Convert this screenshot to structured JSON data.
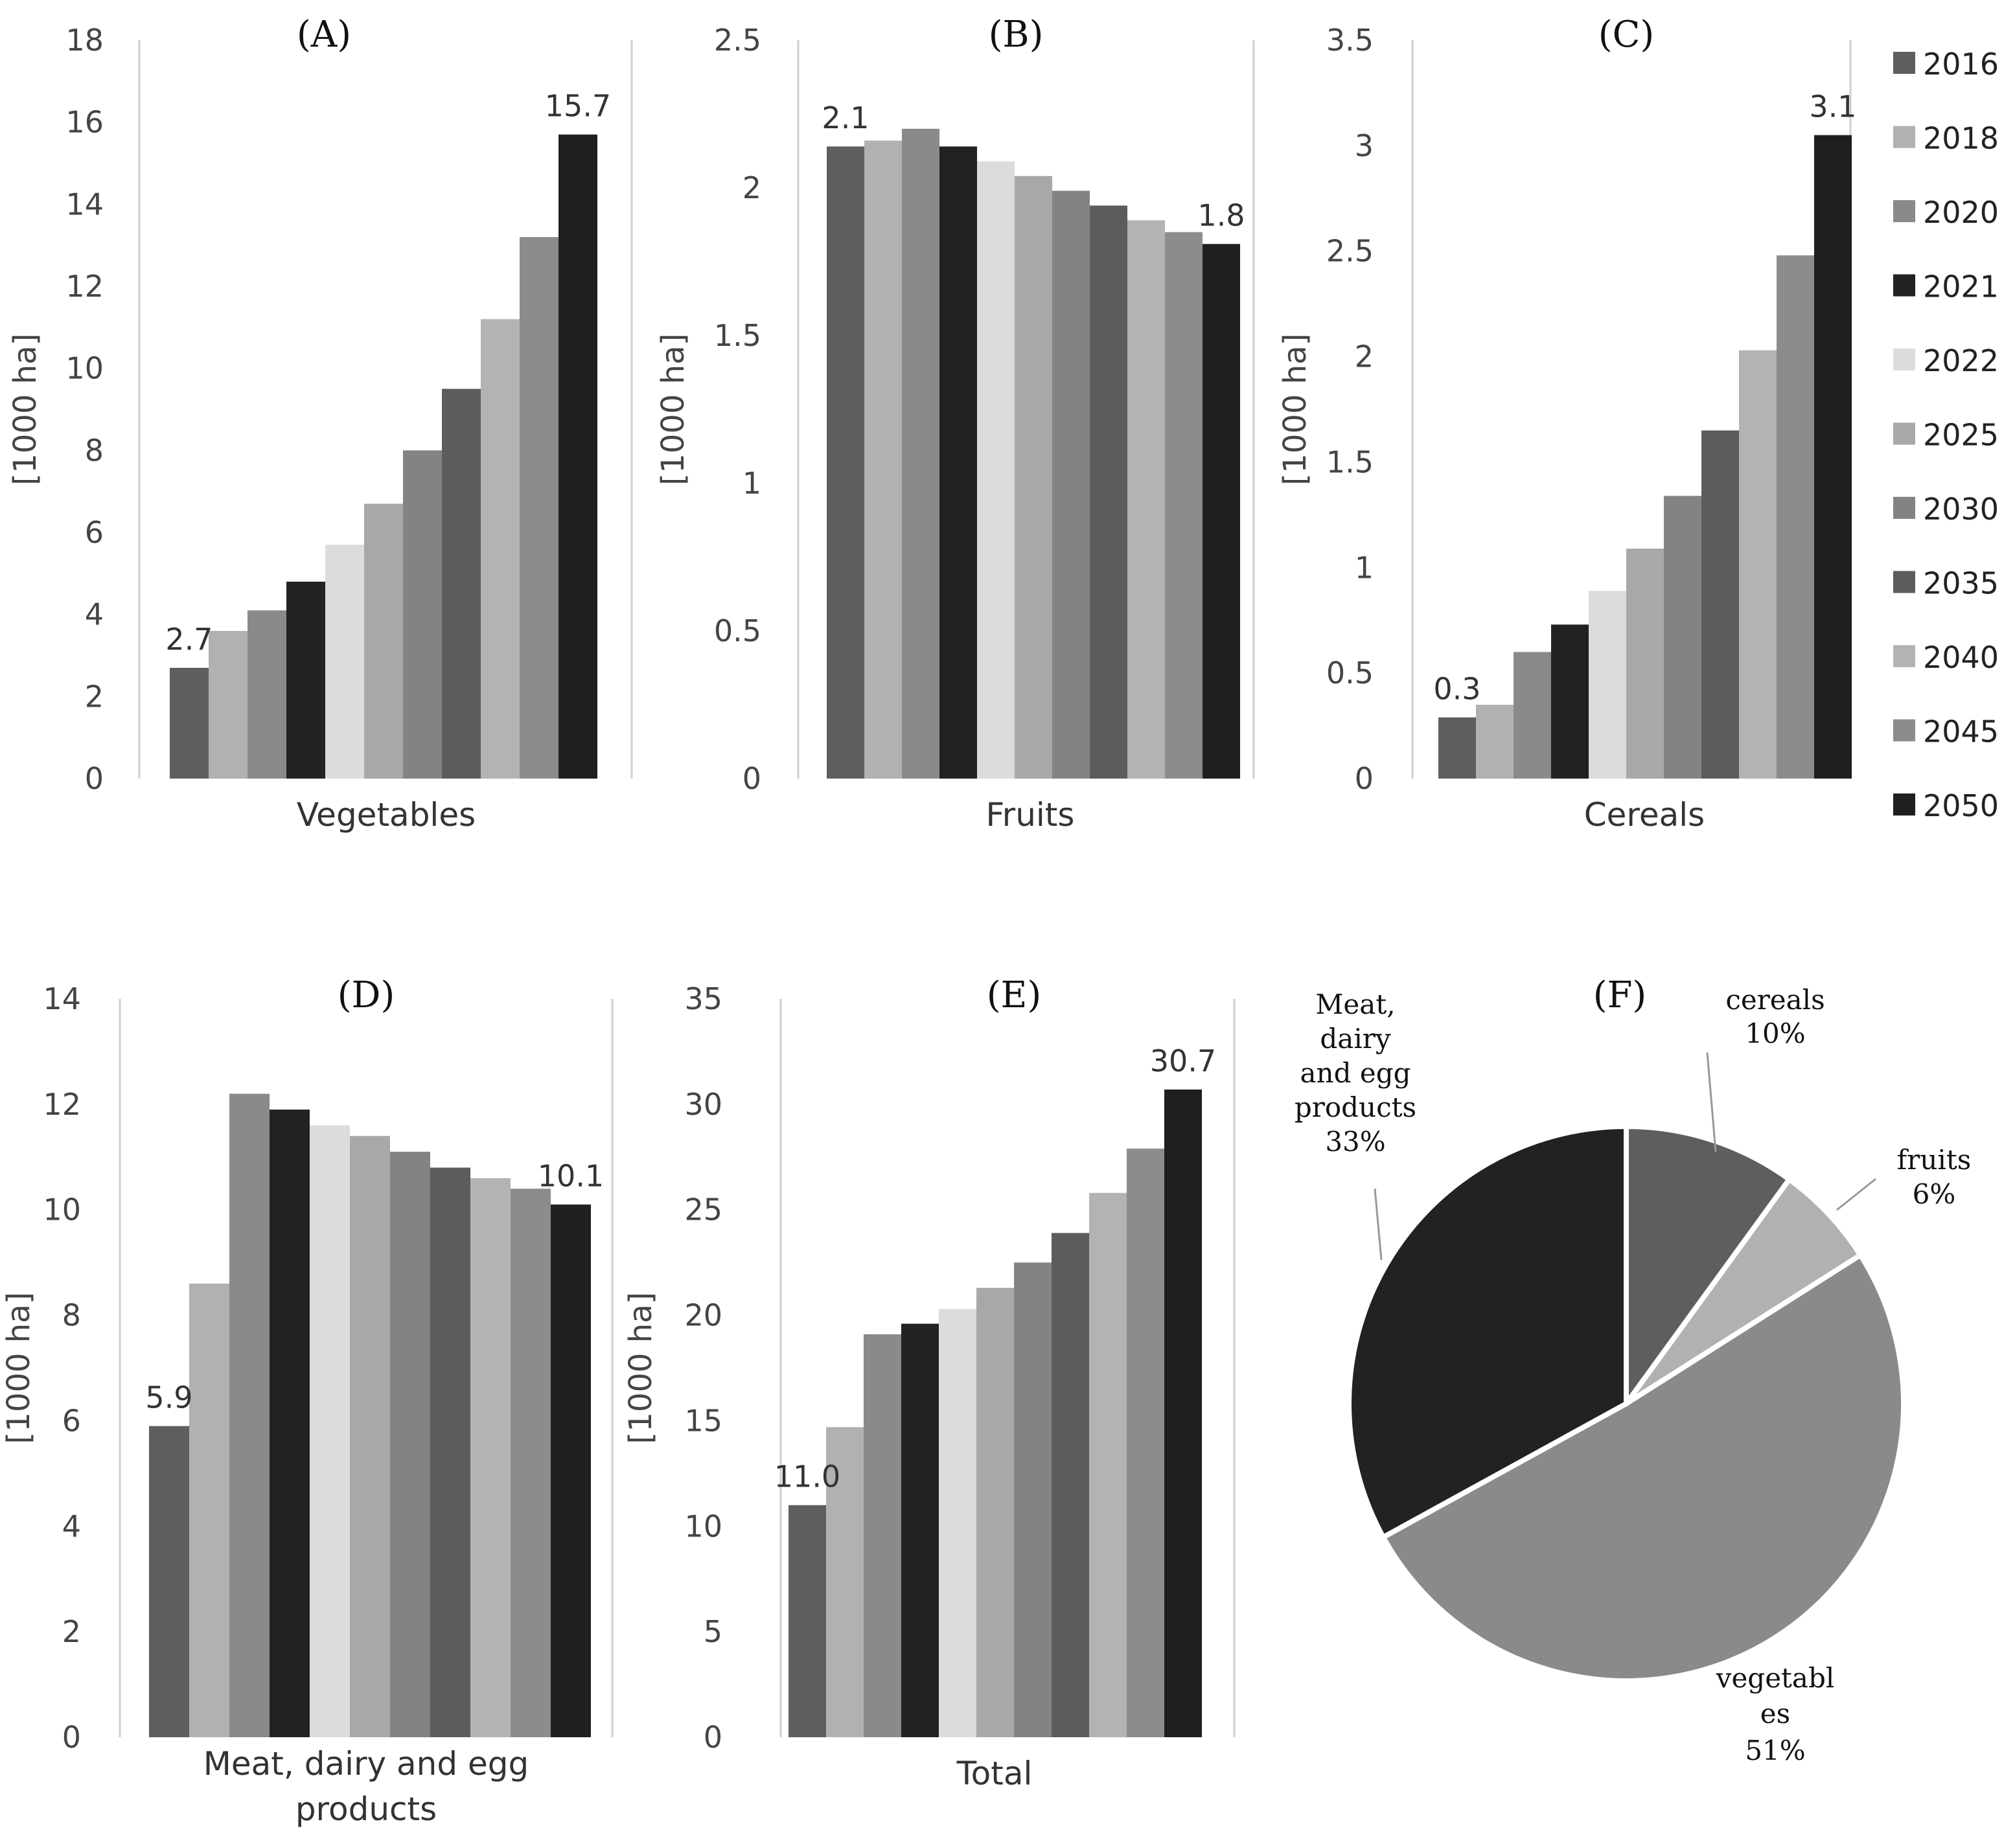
{
  "legend": {
    "years": [
      "2016",
      "2018",
      "2020",
      "2021",
      "2022",
      "2025",
      "2030",
      "2035",
      "2040",
      "2045",
      "2050"
    ],
    "colors": [
      "#5e5e5e",
      "#b1b1b1",
      "#8a8a8a",
      "#222222",
      "#dcdcdc",
      "#a8a8a8",
      "#838383",
      "#5c5c5c",
      "#b3b3b3",
      "#8c8c8c",
      "#1f1f1f"
    ]
  },
  "chart_data": [
    {
      "id": "A",
      "type": "bar",
      "title": "(A)",
      "xlabel": "Vegetables",
      "ylabel": "[1000 ha]",
      "ylim": [
        0,
        18
      ],
      "yticks": [
        0,
        2,
        4,
        6,
        8,
        10,
        12,
        14,
        16,
        18
      ],
      "ytick_labels": [
        "0",
        "2",
        "4",
        "6",
        "8",
        "10",
        "12",
        "14",
        "16",
        "18"
      ],
      "categories": [
        "2016",
        "2018",
        "2020",
        "2021",
        "2022",
        "2025",
        "2030",
        "2035",
        "2040",
        "2045",
        "2050"
      ],
      "values": [
        2.7,
        3.6,
        4.1,
        4.8,
        5.7,
        6.7,
        8.0,
        9.5,
        11.2,
        13.2,
        15.7
      ],
      "data_labels": [
        {
          "index": 0,
          "text": "2.7"
        },
        {
          "index": 10,
          "text": "15.7"
        }
      ]
    },
    {
      "id": "B",
      "type": "bar",
      "title": "(B)",
      "xlabel": "Fruits",
      "ylabel": "[1000 ha]",
      "ylim": [
        0,
        2.5
      ],
      "yticks": [
        0,
        0.5,
        1,
        1.5,
        2,
        2.5
      ],
      "ytick_labels": [
        "0",
        "0.5",
        "1",
        "1.5",
        "2",
        "2.5"
      ],
      "categories": [
        "2016",
        "2018",
        "2020",
        "2021",
        "2022",
        "2025",
        "2030",
        "2035",
        "2040",
        "2045",
        "2050"
      ],
      "values": [
        2.14,
        2.16,
        2.2,
        2.14,
        2.09,
        2.04,
        1.99,
        1.94,
        1.89,
        1.85,
        1.81
      ],
      "data_labels": [
        {
          "index": 0,
          "text": "2.1"
        },
        {
          "index": 10,
          "text": "1.8"
        }
      ]
    },
    {
      "id": "C",
      "type": "bar",
      "title": "(C)",
      "xlabel": "Cereals",
      "ylabel": "[1000 ha]",
      "ylim": [
        0,
        3.5
      ],
      "yticks": [
        0,
        0.5,
        1,
        1.5,
        2,
        2.5,
        3,
        3.5
      ],
      "ytick_labels": [
        "0",
        "0.5",
        "1",
        "1.5",
        "2",
        "2.5",
        "3",
        "3.5"
      ],
      "categories": [
        "2016",
        "2018",
        "2020",
        "2021",
        "2022",
        "2025",
        "2030",
        "2035",
        "2040",
        "2045",
        "2050"
      ],
      "values": [
        0.29,
        0.35,
        0.6,
        0.73,
        0.89,
        1.09,
        1.34,
        1.65,
        2.03,
        2.48,
        3.05
      ],
      "data_labels": [
        {
          "index": 0,
          "text": "0.3"
        },
        {
          "index": 10,
          "text": "3.1"
        }
      ]
    },
    {
      "id": "D",
      "type": "bar",
      "title": "(D)",
      "xlabel": "Meat, dairy and egg products",
      "ylabel": "[1000 ha]",
      "ylim": [
        0,
        14
      ],
      "yticks": [
        0,
        2,
        4,
        6,
        8,
        10,
        12,
        14
      ],
      "ytick_labels": [
        "0",
        "2",
        "4",
        "6",
        "8",
        "10",
        "12",
        "14"
      ],
      "categories": [
        "2016",
        "2018",
        "2020",
        "2021",
        "2022",
        "2025",
        "2030",
        "2035",
        "2040",
        "2045",
        "2050"
      ],
      "values": [
        5.9,
        8.6,
        12.2,
        11.9,
        11.6,
        11.4,
        11.1,
        10.8,
        10.6,
        10.4,
        10.1
      ],
      "data_labels": [
        {
          "index": 0,
          "text": "5.9"
        },
        {
          "index": 10,
          "text": "10.1"
        }
      ]
    },
    {
      "id": "E",
      "type": "bar",
      "title": "(E)",
      "xlabel": "Total",
      "ylabel": "[1000 ha]",
      "ylim": [
        0,
        35
      ],
      "yticks": [
        0,
        5,
        10,
        15,
        20,
        25,
        30,
        35
      ],
      "ytick_labels": [
        "0",
        "5",
        "10",
        "15",
        "20",
        "25",
        "30",
        "35"
      ],
      "categories": [
        "2016",
        "2018",
        "2020",
        "2021",
        "2022",
        "2025",
        "2030",
        "2035",
        "2040",
        "2045",
        "2050"
      ],
      "values": [
        11.0,
        14.7,
        19.1,
        19.6,
        20.3,
        21.3,
        22.5,
        23.9,
        25.8,
        27.9,
        30.7
      ],
      "data_labels": [
        {
          "index": 0,
          "text": "11.0"
        },
        {
          "index": 10,
          "text": "30.7"
        }
      ]
    },
    {
      "id": "F",
      "type": "pie",
      "title": "(F)",
      "slices": [
        {
          "label": "cereals",
          "pct_text": "10%",
          "value": 10,
          "color": "#5e5e5e"
        },
        {
          "label": "fruits",
          "pct_text": "6%",
          "value": 6,
          "color": "#b1b1b1"
        },
        {
          "label": "vegetables",
          "pct_text": "51%",
          "value": 51,
          "color": "#8a8a8a"
        },
        {
          "label": "Meat, dairy and egg products",
          "pct_text": "33%",
          "value": 33,
          "color": "#222222"
        }
      ],
      "label_lines": {
        "cereals": [
          "cereals",
          "10%"
        ],
        "fruits": [
          "fruits",
          "6%"
        ],
        "vegetables": [
          "vegetabl",
          "es",
          "51%"
        ],
        "meat": [
          "Meat,",
          "dairy",
          "and egg",
          "products",
          "33%"
        ]
      }
    }
  ]
}
